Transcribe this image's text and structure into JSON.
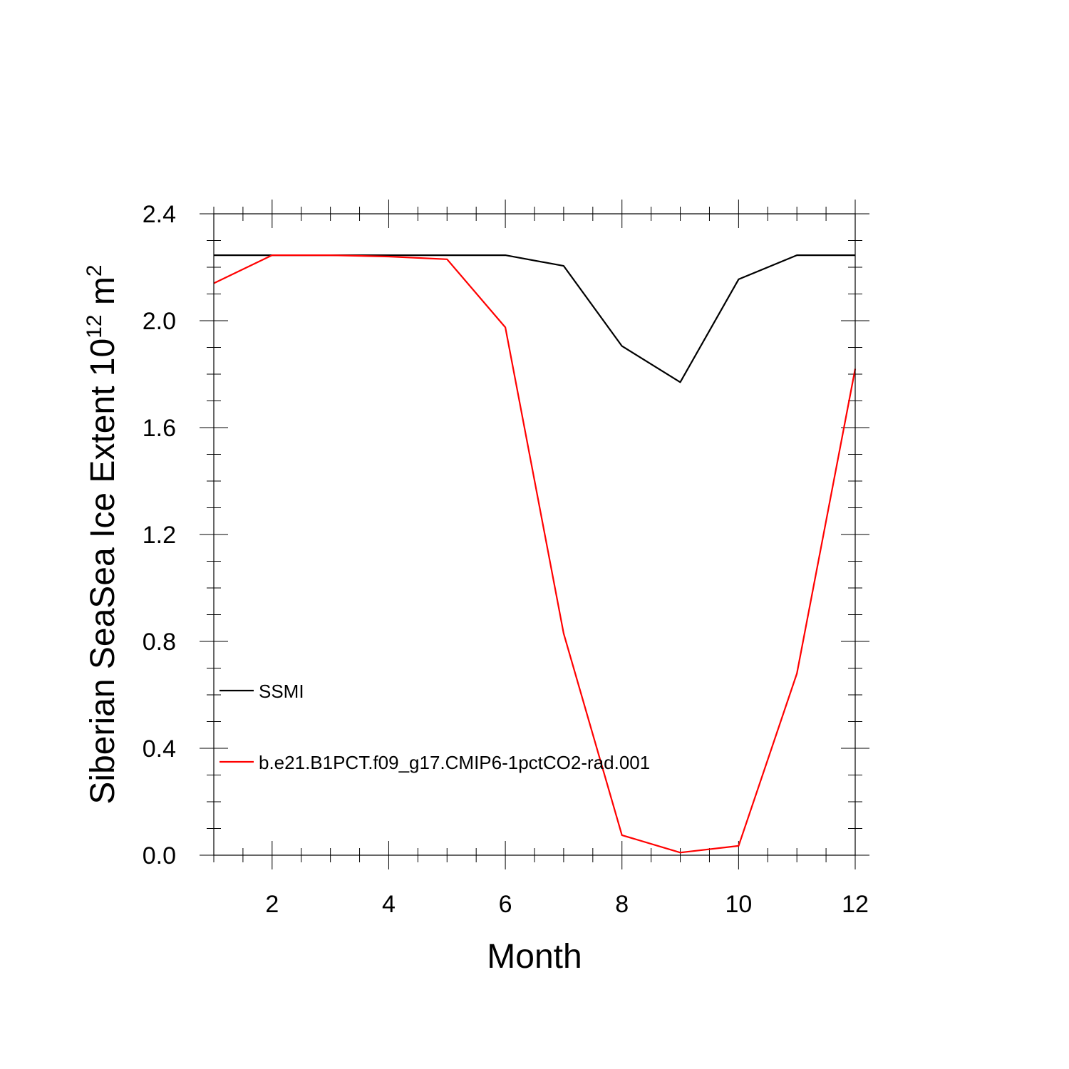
{
  "chart_data": {
    "type": "line",
    "xlabel": "Month",
    "ylabel": {
      "base": "Siberian SeaSea Ice Extent 10",
      "exp1": "12",
      "mid": " m",
      "exp2": "2"
    },
    "xlim": [
      1,
      12
    ],
    "ylim": [
      0,
      2.4
    ],
    "xticks": [
      2,
      4,
      6,
      8,
      10,
      12
    ],
    "yticks": [
      0.0,
      0.4,
      0.8,
      1.2,
      1.6,
      2.0,
      2.4
    ],
    "ytick_labels": [
      "0.0",
      "0.4",
      "0.8",
      "1.2",
      "1.6",
      "2.0",
      "2.4"
    ],
    "grid": false,
    "legend_position": "left",
    "x": [
      1,
      2,
      3,
      4,
      5,
      6,
      7,
      8,
      9,
      10,
      11,
      12
    ],
    "series": [
      {
        "name": "SSMI",
        "color": "#000000",
        "values": [
          2.245,
          2.245,
          2.245,
          2.245,
          2.245,
          2.245,
          2.205,
          1.905,
          1.77,
          2.155,
          2.245,
          2.245
        ]
      },
      {
        "name": "b.e21.B1PCT.f09_g17.CMIP6-1pctCO2-rad.001",
        "color": "#ff0000",
        "values": [
          2.14,
          2.245,
          2.245,
          2.24,
          2.23,
          1.975,
          0.83,
          0.075,
          0.01,
          0.035,
          0.68,
          1.82
        ]
      }
    ]
  }
}
